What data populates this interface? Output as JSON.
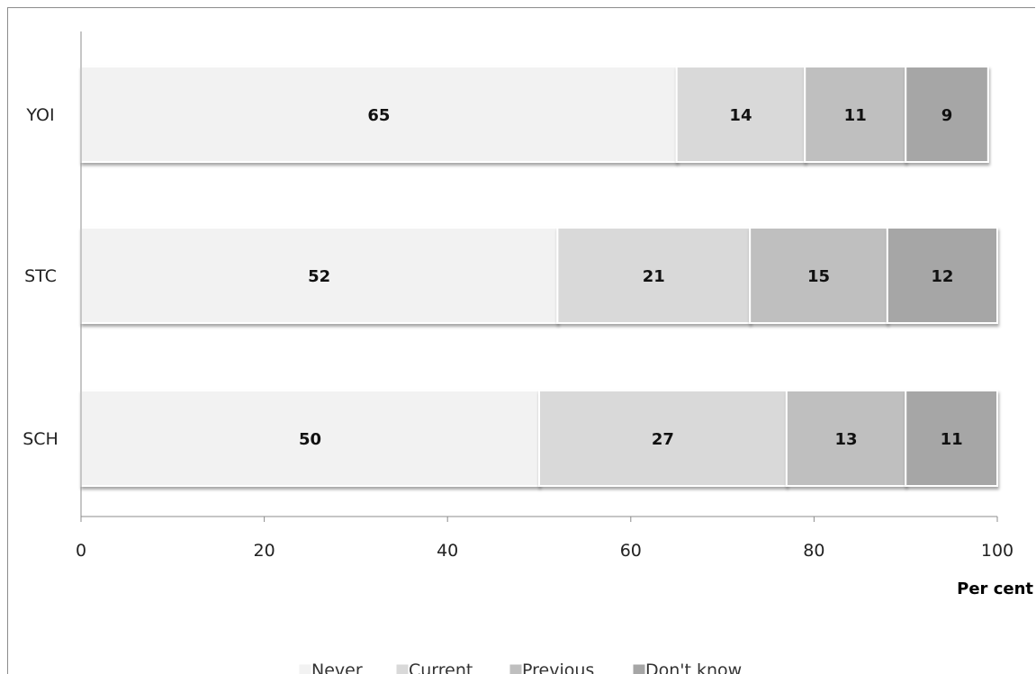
{
  "chart_data": {
    "type": "bar",
    "orientation": "horizontal",
    "stacked": true,
    "categories": [
      "YOI",
      "STC",
      "SCH"
    ],
    "series": [
      {
        "name": "Never",
        "values": [
          65,
          52,
          50
        ],
        "color": "#f2f2f2"
      },
      {
        "name": "Current",
        "values": [
          14,
          21,
          27
        ],
        "color": "#d9d9d9"
      },
      {
        "name": "Previous",
        "values": [
          11,
          15,
          13
        ],
        "color": "#bfbfbf"
      },
      {
        "name": "Don't know",
        "values": [
          9,
          12,
          11
        ],
        "color": "#a6a6a6"
      }
    ],
    "xlabel": "Per cent",
    "xlim": [
      0,
      100
    ],
    "xticks": [
      "0",
      "20",
      "40",
      "60",
      "80",
      "100"
    ],
    "grid": false,
    "legend_position": "bottom"
  }
}
